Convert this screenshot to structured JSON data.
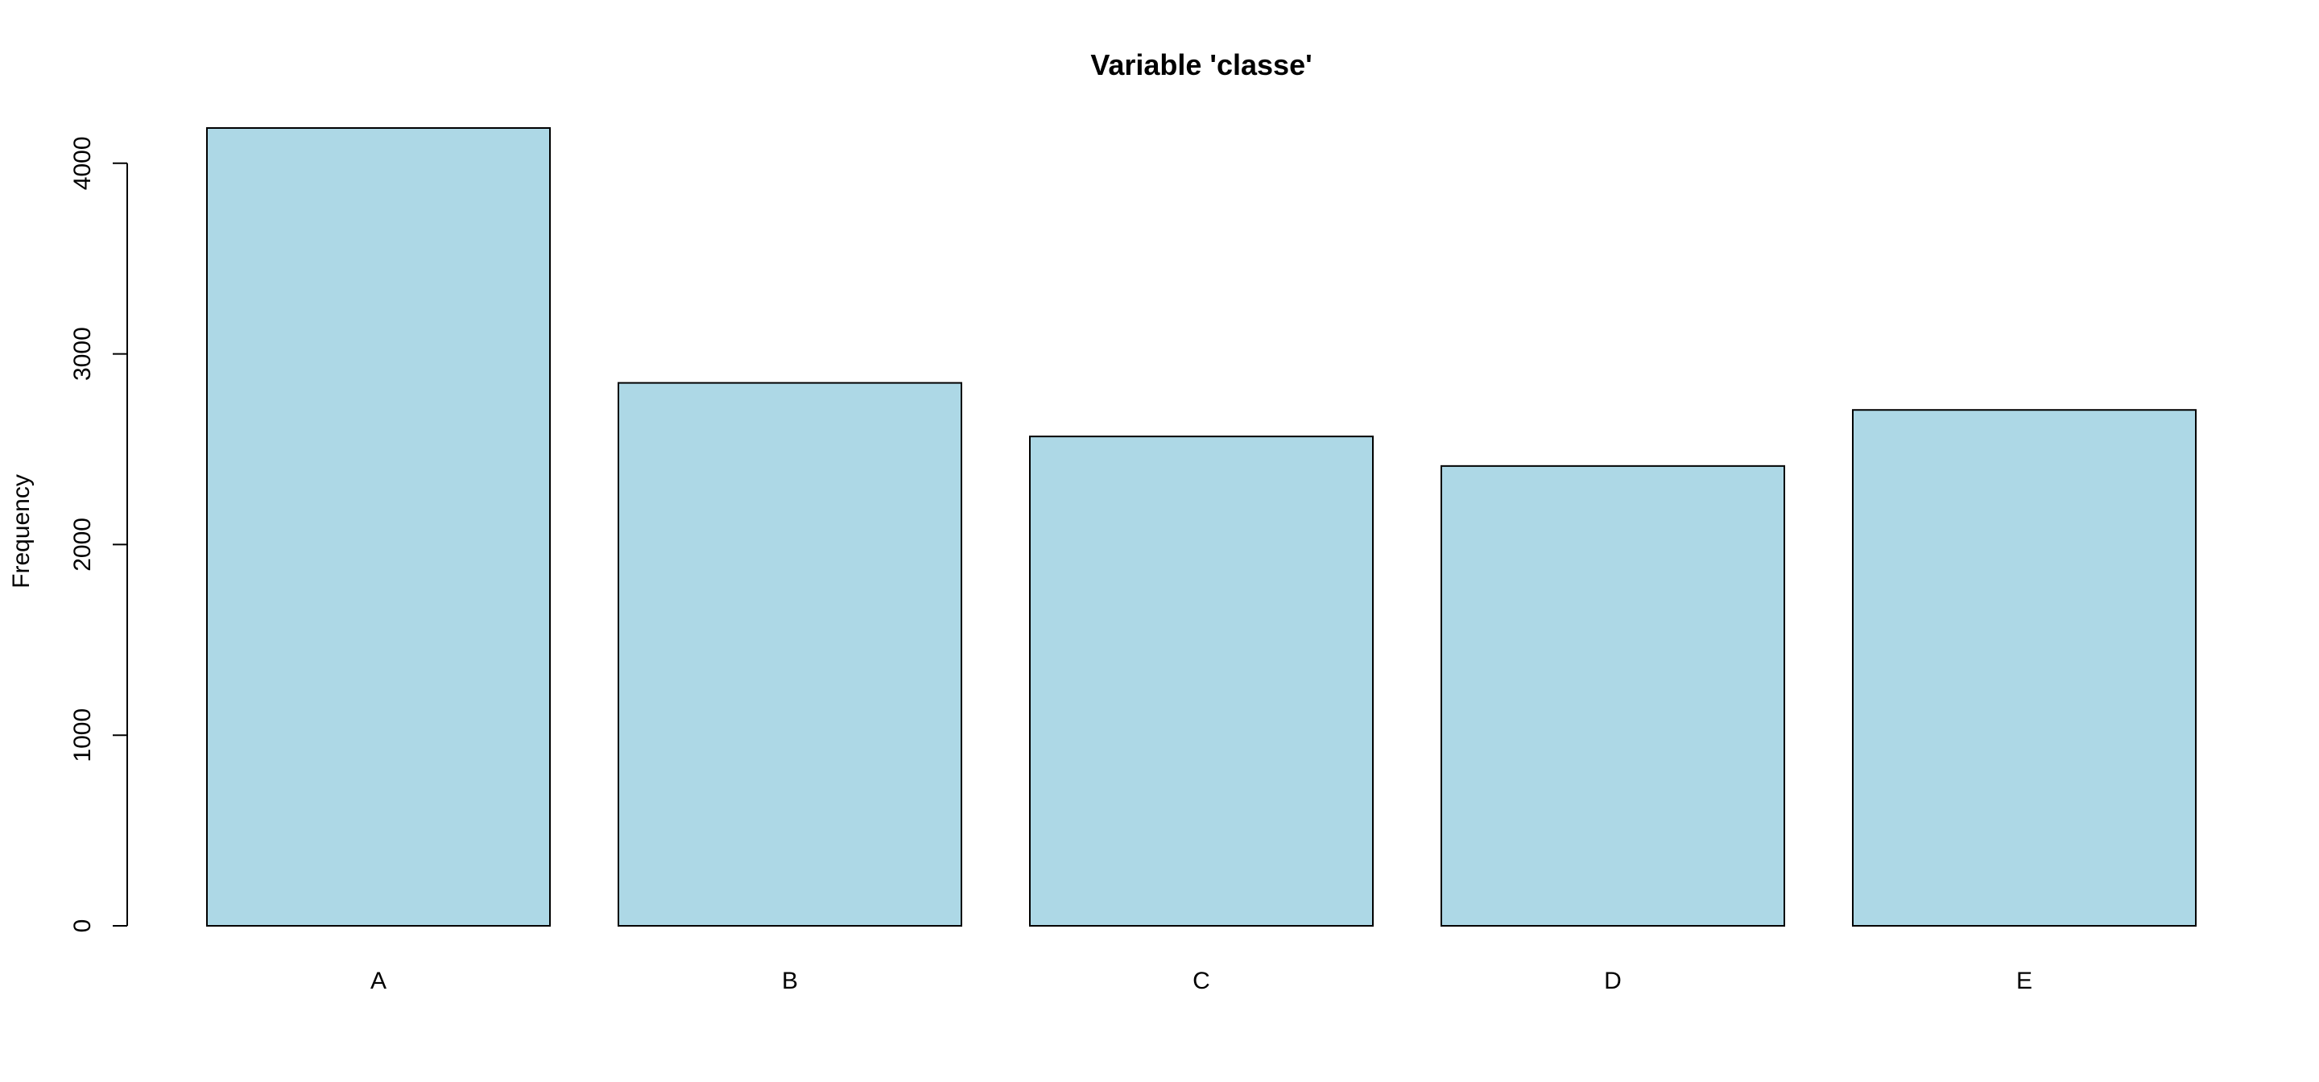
{
  "chart_data": {
    "type": "bar",
    "title": "Variable 'classe'",
    "xlabel": "",
    "ylabel": "Frequency",
    "categories": [
      "A",
      "B",
      "C",
      "D",
      "E"
    ],
    "values": [
      4185,
      2848,
      2567,
      2412,
      2706
    ],
    "yticks": [
      0,
      1000,
      2000,
      3000,
      4000
    ],
    "ylim": [
      0,
      4185
    ],
    "bar_color": "#ADD8E6",
    "bar_border_color": "#000000",
    "grid": false,
    "legend": "none"
  }
}
